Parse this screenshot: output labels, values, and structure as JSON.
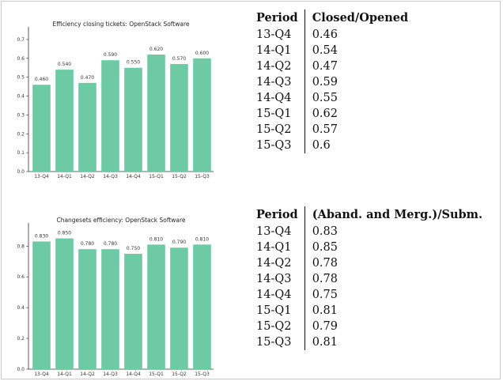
{
  "chart_data": [
    {
      "type": "bar",
      "title": "Efficiency closing tickets: OpenStack Software",
      "categories": [
        "13-Q4",
        "14-Q1",
        "14-Q2",
        "14-Q3",
        "14-Q4",
        "15-Q1",
        "15-Q2",
        "15-Q3"
      ],
      "values": [
        0.46,
        0.54,
        0.47,
        0.59,
        0.55,
        0.62,
        0.57,
        0.6
      ],
      "value_labels": [
        "0.460",
        "0.540",
        "0.470",
        "0.590",
        "0.550",
        "0.620",
        "0.570",
        "0.600"
      ],
      "yticks": [
        "0.0",
        "0.1",
        "0.2",
        "0.3",
        "0.4",
        "0.5",
        "0.6",
        "0.7"
      ],
      "ylim": [
        0,
        0.75
      ],
      "bar_color": "#6dcaa5",
      "grid": false
    },
    {
      "type": "bar",
      "title": "Changesets efficiency: OpenStack Software",
      "categories": [
        "13-Q4",
        "14-Q1",
        "14-Q2",
        "14-Q3",
        "14-Q4",
        "15-Q1",
        "15-Q2",
        "15-Q3"
      ],
      "values": [
        0.83,
        0.85,
        0.78,
        0.78,
        0.75,
        0.81,
        0.79,
        0.81
      ],
      "value_labels": [
        "0.830",
        "0.850",
        "0.780",
        "0.780",
        "0.750",
        "0.810",
        "0.790",
        "0.810"
      ],
      "yticks": [
        "0.0",
        "0.2",
        "0.4",
        "0.6",
        "0.8"
      ],
      "ylim": [
        0,
        0.93
      ],
      "bar_color": "#6dcaa5",
      "grid": false
    }
  ],
  "tables": [
    {
      "headers": [
        "Period",
        "Closed/Opened"
      ],
      "rows": [
        [
          "13-Q4",
          "0.46"
        ],
        [
          "14-Q1",
          "0.54"
        ],
        [
          "14-Q2",
          "0.47"
        ],
        [
          "14-Q3",
          "0.59"
        ],
        [
          "14-Q4",
          "0.55"
        ],
        [
          "15-Q1",
          "0.62"
        ],
        [
          "15-Q2",
          "0.57"
        ],
        [
          "15-Q3",
          "0.6"
        ]
      ]
    },
    {
      "headers": [
        "Period",
        "(Aband. and Merg.)/Subm."
      ],
      "rows": [
        [
          "13-Q4",
          "0.83"
        ],
        [
          "14-Q1",
          "0.85"
        ],
        [
          "14-Q2",
          "0.78"
        ],
        [
          "14-Q3",
          "0.78"
        ],
        [
          "14-Q4",
          "0.75"
        ],
        [
          "15-Q1",
          "0.81"
        ],
        [
          "15-Q2",
          "0.79"
        ],
        [
          "15-Q3",
          "0.81"
        ]
      ]
    }
  ]
}
